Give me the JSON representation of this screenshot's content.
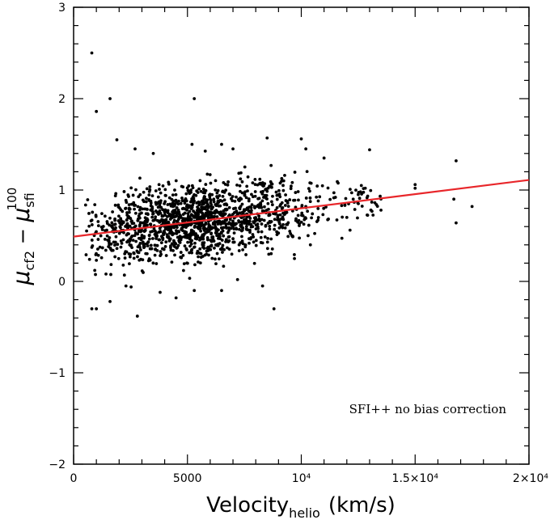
{
  "chart_data": {
    "type": "scatter",
    "title": "",
    "xlabel": {
      "main": "Velocity",
      "sub": "helio",
      "unit": "(km/s)"
    },
    "ylabel": {
      "main": "μ",
      "sub1": "cf2",
      "minus": " − ",
      "main2": "μ",
      "sub2": "sfi",
      "sup2": "100"
    },
    "xlim": [
      0,
      20000
    ],
    "ylim": [
      -2,
      3
    ],
    "x_ticks": [
      {
        "value": 0,
        "label": "0"
      },
      {
        "value": 5000,
        "label": "5000"
      },
      {
        "value": 10000,
        "label": "10⁴"
      },
      {
        "value": 15000,
        "label": "1.5×10⁴"
      },
      {
        "value": 20000,
        "label": "2×10⁴"
      }
    ],
    "y_ticks": [
      {
        "value": -2,
        "label": "−2"
      },
      {
        "value": -1,
        "label": "−1"
      },
      {
        "value": 0,
        "label": "0"
      },
      {
        "value": 1,
        "label": "1"
      },
      {
        "value": 2,
        "label": "2"
      },
      {
        "value": 3,
        "label": "3"
      }
    ],
    "annotation": "SFI++ no bias correction",
    "fit_line": {
      "x": [
        0,
        20000
      ],
      "y": [
        0.49,
        1.11
      ],
      "color": "#e8262a"
    },
    "marker_color": "#000000",
    "grid": false,
    "outliers": [
      [
        800,
        2.5
      ],
      [
        1000,
        1.86
      ],
      [
        1600,
        2.0
      ],
      [
        5300,
        2.0
      ],
      [
        1900,
        1.55
      ],
      [
        2700,
        1.45
      ],
      [
        3500,
        1.4
      ],
      [
        5200,
        1.5
      ],
      [
        6500,
        1.5
      ],
      [
        7000,
        1.45
      ],
      [
        8500,
        1.57
      ],
      [
        10000,
        1.56
      ],
      [
        10200,
        1.45
      ],
      [
        11000,
        1.35
      ],
      [
        13000,
        1.44
      ],
      [
        15000,
        1.06
      ],
      [
        15000,
        1.02
      ],
      [
        16800,
        1.32
      ],
      [
        16700,
        0.9
      ],
      [
        16800,
        0.64
      ],
      [
        17500,
        0.82
      ],
      [
        12000,
        0.7
      ],
      [
        11500,
        0.92
      ],
      [
        12500,
        0.95
      ],
      [
        13500,
        0.78
      ],
      [
        13300,
        0.84
      ],
      [
        800,
        -0.3
      ],
      [
        1000,
        -0.3
      ],
      [
        2800,
        -0.38
      ],
      [
        4500,
        -0.18
      ],
      [
        8800,
        -0.3
      ],
      [
        8300,
        -0.05
      ],
      [
        1600,
        -0.22
      ],
      [
        5300,
        -0.1
      ],
      [
        6500,
        -0.1
      ],
      [
        2300,
        -0.05
      ],
      [
        3800,
        -0.12
      ],
      [
        7200,
        0.02
      ],
      [
        9700,
        0.25
      ],
      [
        10400,
        0.4
      ]
    ],
    "bulk_series": {
      "n": 1450,
      "seed": 20240607,
      "x_range": [
        500,
        10500
      ],
      "x_peak": 5000,
      "slope_per_km_s": 3.1e-05,
      "intercept": 0.49,
      "scatter_sigma": 0.2
    }
  }
}
